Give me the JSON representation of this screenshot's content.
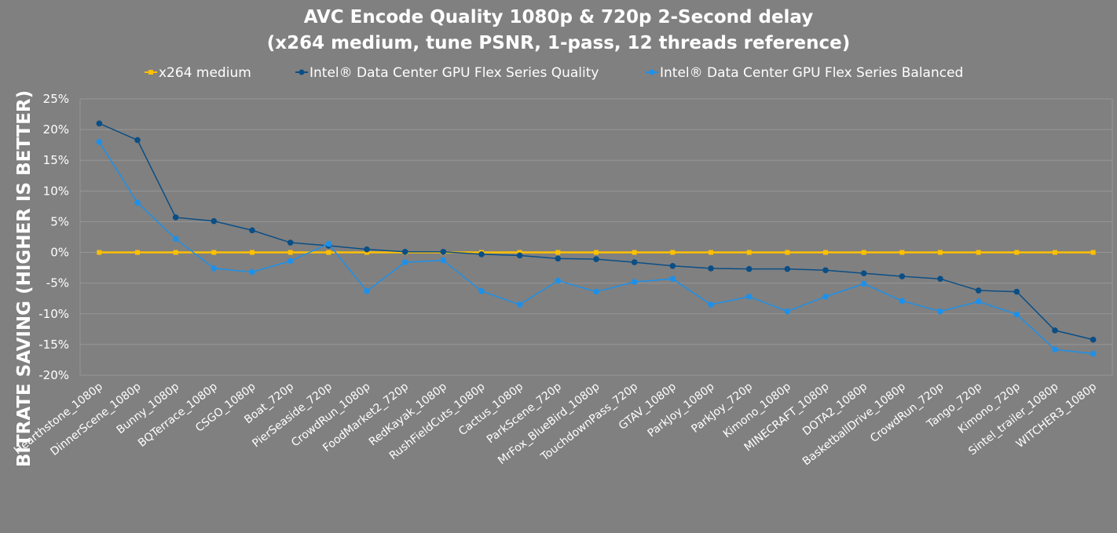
{
  "chart_data": {
    "type": "line",
    "title_line1": "AVC Encode Quality 1080p & 720p 2-Second delay",
    "title_line2": "(x264 medium, tune PSNR, 1-pass, 12 threads reference)",
    "ylabel": "BITRATE SAVING (HIGHER IS BETTER)",
    "xlabel": "",
    "ylim": [
      -20,
      25
    ],
    "ytick_step": 5,
    "ytick_suffix": "%",
    "grid": true,
    "legend_position": "top",
    "categories": [
      "Hearthstone_1080p",
      "DinnerScene_1080p",
      "Bunny_1080p",
      "BQTerrace_1080p",
      "CSGO_1080p",
      "Boat_720p",
      "PierSeaside_720p",
      "CrowdRun_1080p",
      "FoodMarket2_720p",
      "RedKayak_1080p",
      "RushFieldCuts_1080p",
      "Cactus_1080p",
      "ParkScene_720p",
      "MrFox_BlueBird_1080p",
      "TouchdownPass_720p",
      "GTAV_1080p",
      "ParkJoy_1080p",
      "ParkJoy_720p",
      "Kimono_1080p",
      "MINECRAFT_1080p",
      "DOTA2_1080p",
      "BasketballDrive_1080p",
      "CrowdRun_720p",
      "Tango_720p",
      "Kimono_720p",
      "Sintel_trailer_1080p",
      "WITCHER3_1080p"
    ],
    "series": [
      {
        "name": "x264 medium",
        "color": "#ffc000",
        "marker": "square",
        "values": [
          0,
          0,
          0,
          0,
          0,
          0,
          0,
          0,
          0,
          0,
          0,
          0,
          0,
          0,
          0,
          0,
          0,
          0,
          0,
          0,
          0,
          0,
          0,
          0,
          0,
          0,
          0
        ]
      },
      {
        "name": "Intel® Data Center GPU Flex Series Quality",
        "color": "#0a4e86",
        "marker": "circle",
        "values": [
          21.0,
          18.3,
          5.7,
          5.1,
          3.6,
          1.6,
          1.1,
          0.5,
          0.1,
          0.1,
          -0.3,
          -0.5,
          -1.0,
          -1.1,
          -1.6,
          -2.2,
          -2.6,
          -2.7,
          -2.7,
          -2.9,
          -3.4,
          -3.9,
          -4.3,
          -6.2,
          -6.4,
          -12.7,
          -14.2
        ]
      },
      {
        "name": "Intel® Data Center GPU Flex Series Balanced",
        "color": "#1e90e8",
        "marker": "circle",
        "values": [
          18.0,
          8.1,
          2.2,
          -2.6,
          -3.2,
          -1.4,
          1.4,
          -6.3,
          -1.6,
          -1.3,
          -6.3,
          -8.5,
          -4.6,
          -6.4,
          -4.8,
          -4.3,
          -8.5,
          -7.2,
          -9.6,
          -7.2,
          -5.1,
          -7.9,
          -9.6,
          -8.0,
          -10.1,
          -15.8,
          -16.5
        ]
      }
    ]
  }
}
